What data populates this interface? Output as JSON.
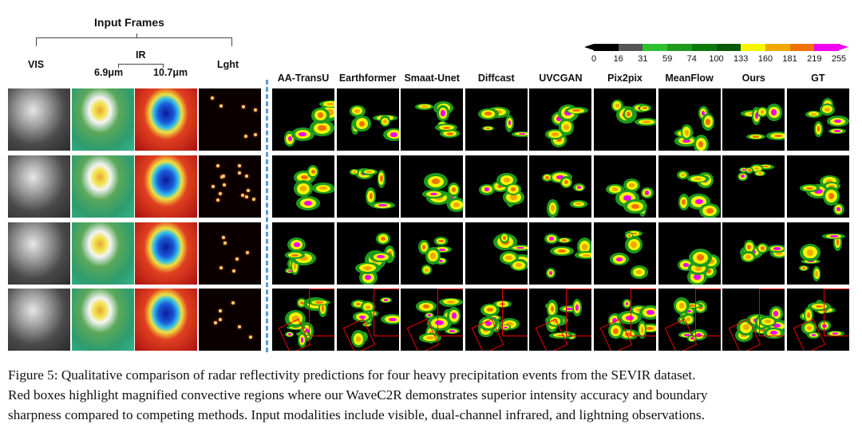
{
  "input_header": {
    "title": "Input Frames",
    "vis": "VIS",
    "ir": "IR",
    "ir_6_9": "6.9μm",
    "ir_10_7": "10.7μm",
    "lght": "Lght"
  },
  "methods": [
    "AA-TransU",
    "Earthformer",
    "Smaat-Unet",
    "Diffcast",
    "UVCGAN",
    "Pix2pix",
    "MeanFlow",
    "Ours",
    "GT"
  ],
  "colorbar": {
    "ticks": [
      "0",
      "16",
      "31",
      "59",
      "74",
      "100",
      "133",
      "160",
      "181",
      "219",
      "255"
    ],
    "colors": [
      "#000000",
      "#555555",
      "#2fbf2f",
      "#1e9a1e",
      "#0e7a0e",
      "#0a5a0a",
      "#f5f500",
      "#f0a800",
      "#f07000",
      "#f000f0"
    ]
  },
  "caption": {
    "line1": "Figure 5: Qualitative comparison of radar reflectivity predictions for four heavy precipitation events from the SEVIR dataset.",
    "line2": "Red boxes highlight magnified convective regions where our WaveC2R demonstrates superior intensity accuracy and boundary",
    "line3": "sharpness compared to competing methods. Input modalities include visible, dual-channel infrared, and lightning observations."
  }
}
